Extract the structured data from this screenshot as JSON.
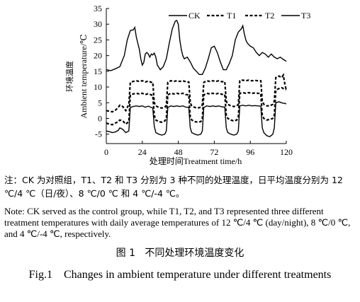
{
  "chart_data": {
    "type": "line",
    "xlabel": "处理时间Treatment time/h",
    "ylabel_zh": "环境温度",
    "ylabel_en": "Ambient temperature/℃",
    "xlim": [
      0,
      120
    ],
    "ylim": [
      -8,
      35
    ],
    "x_ticks": [
      0,
      24,
      48,
      72,
      96,
      120
    ],
    "y_ticks": [
      -5,
      0,
      5,
      10,
      15,
      20,
      25,
      30,
      35
    ],
    "legend_position": "top-right",
    "grid": false,
    "series": [
      {
        "name": "CK",
        "style": "solid",
        "points": [
          [
            0,
            15.5
          ],
          [
            3,
            15.2
          ],
          [
            6,
            15.8
          ],
          [
            9,
            16.5
          ],
          [
            12,
            20
          ],
          [
            14,
            25
          ],
          [
            16,
            28
          ],
          [
            18,
            28.2
          ],
          [
            19,
            29
          ],
          [
            20,
            26
          ],
          [
            21,
            24
          ],
          [
            22,
            22
          ],
          [
            23,
            19
          ],
          [
            24,
            17
          ],
          [
            25,
            17.8
          ],
          [
            26,
            20.5
          ],
          [
            27,
            21
          ],
          [
            28,
            20.5
          ],
          [
            29,
            19.5
          ],
          [
            30,
            20.5
          ],
          [
            31,
            20.2
          ],
          [
            32,
            20.8
          ],
          [
            33,
            19.5
          ],
          [
            34,
            17
          ],
          [
            36,
            15.5
          ],
          [
            38,
            16.5
          ],
          [
            40,
            19
          ],
          [
            42,
            24
          ],
          [
            44,
            28.5
          ],
          [
            46,
            31
          ],
          [
            47,
            31.2
          ],
          [
            48,
            30
          ],
          [
            49,
            25
          ],
          [
            50,
            22
          ],
          [
            51,
            20
          ],
          [
            52,
            19
          ],
          [
            54,
            19.5
          ],
          [
            56,
            18
          ],
          [
            58,
            16
          ],
          [
            60,
            15
          ],
          [
            62,
            14
          ],
          [
            64,
            14
          ],
          [
            66,
            16
          ],
          [
            68,
            19
          ],
          [
            70,
            22.5
          ],
          [
            72,
            23
          ],
          [
            74,
            21
          ],
          [
            76,
            18
          ],
          [
            78,
            15.5
          ],
          [
            80,
            15.5
          ],
          [
            82,
            17.5
          ],
          [
            84,
            20
          ],
          [
            86,
            25
          ],
          [
            88,
            27.5
          ],
          [
            90,
            28.5
          ],
          [
            91,
            29.5
          ],
          [
            92,
            27
          ],
          [
            93,
            25
          ],
          [
            94,
            24
          ],
          [
            96,
            23
          ],
          [
            98,
            22.5
          ],
          [
            100,
            21
          ],
          [
            102,
            20
          ],
          [
            104,
            21
          ],
          [
            106,
            20.5
          ],
          [
            108,
            19.5
          ],
          [
            110,
            20.5
          ],
          [
            112,
            19.5
          ],
          [
            114,
            19
          ],
          [
            116,
            19.5
          ],
          [
            118,
            18.8
          ],
          [
            120,
            18.2
          ]
        ]
      },
      {
        "name": "T1",
        "style": "dashed",
        "points": [
          [
            0,
            2.5
          ],
          [
            2,
            2.3
          ],
          [
            4,
            2.1
          ],
          [
            6,
            2.6
          ],
          [
            8,
            3.5
          ],
          [
            9,
            4.2
          ],
          [
            11,
            3.8
          ],
          [
            13,
            2.5
          ],
          [
            15,
            4.5
          ],
          [
            16,
            11.5
          ],
          [
            18,
            11.8
          ],
          [
            20,
            12
          ],
          [
            22,
            11.8
          ],
          [
            24,
            12
          ],
          [
            26,
            11.6
          ],
          [
            28,
            11.9
          ],
          [
            30,
            11.5
          ],
          [
            31,
            11.5
          ],
          [
            32,
            5
          ],
          [
            33,
            4
          ],
          [
            35,
            3.5
          ],
          [
            37,
            3.3
          ],
          [
            39,
            3.6
          ],
          [
            40,
            4.2
          ],
          [
            41,
            11.5
          ],
          [
            43,
            12
          ],
          [
            45,
            11.8
          ],
          [
            47,
            12
          ],
          [
            49,
            11.8
          ],
          [
            51,
            12
          ],
          [
            53,
            11.7
          ],
          [
            55,
            11.6
          ],
          [
            56,
            5
          ],
          [
            57,
            4
          ],
          [
            59,
            3.5
          ],
          [
            61,
            3.3
          ],
          [
            63,
            3.6
          ],
          [
            64,
            4.3
          ],
          [
            65,
            11.5
          ],
          [
            67,
            12
          ],
          [
            69,
            11.8
          ],
          [
            71,
            12
          ],
          [
            73,
            11.8
          ],
          [
            75,
            12
          ],
          [
            77,
            11.7
          ],
          [
            79,
            11.7
          ],
          [
            80,
            5.5
          ],
          [
            81,
            4.5
          ],
          [
            83,
            4
          ],
          [
            85,
            3.8
          ],
          [
            87,
            4
          ],
          [
            88,
            4.5
          ],
          [
            89,
            12
          ],
          [
            91,
            12.2
          ],
          [
            93,
            12
          ],
          [
            95,
            12.2
          ],
          [
            97,
            12
          ],
          [
            99,
            12.1
          ],
          [
            101,
            12
          ],
          [
            103,
            12
          ],
          [
            104,
            5.5
          ],
          [
            105,
            4.5
          ],
          [
            107,
            4
          ],
          [
            109,
            4
          ],
          [
            111,
            4.5
          ],
          [
            112,
            5.5
          ],
          [
            113,
            13
          ],
          [
            115,
            13.5
          ],
          [
            117,
            13
          ],
          [
            118,
            13.8
          ],
          [
            119,
            11
          ],
          [
            120,
            9
          ]
        ]
      },
      {
        "name": "T2",
        "style": "dashed",
        "points": [
          [
            0,
            -1.5
          ],
          [
            2,
            -1.8
          ],
          [
            4,
            -2
          ],
          [
            6,
            -1.5
          ],
          [
            8,
            -1
          ],
          [
            9,
            -0.5
          ],
          [
            11,
            -0.8
          ],
          [
            13,
            -1.8
          ],
          [
            15,
            -1
          ],
          [
            16,
            7.5
          ],
          [
            18,
            7.8
          ],
          [
            20,
            8
          ],
          [
            22,
            7.8
          ],
          [
            24,
            8
          ],
          [
            26,
            7.6
          ],
          [
            28,
            7.9
          ],
          [
            30,
            7.5
          ],
          [
            31,
            7.3
          ],
          [
            32,
            1
          ],
          [
            33,
            -0.5
          ],
          [
            35,
            -1
          ],
          [
            37,
            -1.2
          ],
          [
            39,
            -0.8
          ],
          [
            40,
            0
          ],
          [
            41,
            7.5
          ],
          [
            43,
            8
          ],
          [
            45,
            7.8
          ],
          [
            47,
            8
          ],
          [
            49,
            7.8
          ],
          [
            51,
            8
          ],
          [
            53,
            7.6
          ],
          [
            55,
            7.5
          ],
          [
            56,
            0.5
          ],
          [
            57,
            -0.5
          ],
          [
            59,
            -1
          ],
          [
            61,
            -1.2
          ],
          [
            63,
            -1
          ],
          [
            64,
            0
          ],
          [
            65,
            7.5
          ],
          [
            67,
            8
          ],
          [
            69,
            7.8
          ],
          [
            71,
            8
          ],
          [
            73,
            7.8
          ],
          [
            75,
            8
          ],
          [
            77,
            7.7
          ],
          [
            79,
            7.6
          ],
          [
            80,
            1
          ],
          [
            81,
            0
          ],
          [
            83,
            -0.5
          ],
          [
            85,
            -0.8
          ],
          [
            87,
            -0.5
          ],
          [
            88,
            0.5
          ],
          [
            89,
            8
          ],
          [
            91,
            8.2
          ],
          [
            93,
            8
          ],
          [
            95,
            8.2
          ],
          [
            97,
            8
          ],
          [
            99,
            8.1
          ],
          [
            101,
            8
          ],
          [
            103,
            7.9
          ],
          [
            104,
            1
          ],
          [
            105,
            0
          ],
          [
            107,
            -0.5
          ],
          [
            109,
            -0.3
          ],
          [
            111,
            0
          ],
          [
            112,
            1
          ],
          [
            113,
            9
          ],
          [
            115,
            9.5
          ],
          [
            117,
            9.8
          ],
          [
            118,
            9.5
          ],
          [
            119,
            9.3
          ],
          [
            120,
            9.2
          ]
        ]
      },
      {
        "name": "T3",
        "style": "solid",
        "points": [
          [
            0,
            -4
          ],
          [
            2,
            -4.2
          ],
          [
            4,
            -4.5
          ],
          [
            6,
            -4.3
          ],
          [
            8,
            -3.8
          ],
          [
            9,
            -3
          ],
          [
            11,
            -3.5
          ],
          [
            13,
            -4.5
          ],
          [
            15,
            -4
          ],
          [
            16,
            3.5
          ],
          [
            18,
            3.8
          ],
          [
            20,
            4
          ],
          [
            22,
            3.8
          ],
          [
            24,
            4
          ],
          [
            26,
            3.6
          ],
          [
            28,
            3.9
          ],
          [
            30,
            3.5
          ],
          [
            31,
            3.3
          ],
          [
            32,
            -2.5
          ],
          [
            33,
            -4.5
          ],
          [
            35,
            -5
          ],
          [
            37,
            -5.3
          ],
          [
            39,
            -5
          ],
          [
            40,
            -4
          ],
          [
            41,
            3.5
          ],
          [
            43,
            4
          ],
          [
            45,
            3.8
          ],
          [
            47,
            4
          ],
          [
            49,
            3.8
          ],
          [
            51,
            4
          ],
          [
            53,
            3.6
          ],
          [
            55,
            3.5
          ],
          [
            56,
            -3
          ],
          [
            57,
            -4.5
          ],
          [
            59,
            -5
          ],
          [
            61,
            -5.3
          ],
          [
            63,
            -5
          ],
          [
            64,
            -4
          ],
          [
            65,
            3.5
          ],
          [
            67,
            4
          ],
          [
            69,
            3.8
          ],
          [
            71,
            4
          ],
          [
            73,
            3.8
          ],
          [
            75,
            4
          ],
          [
            77,
            3.7
          ],
          [
            79,
            3.6
          ],
          [
            80,
            -3
          ],
          [
            81,
            -4.5
          ],
          [
            83,
            -5
          ],
          [
            85,
            -5.3
          ],
          [
            87,
            -5
          ],
          [
            88,
            -4
          ],
          [
            89,
            4
          ],
          [
            91,
            4.2
          ],
          [
            93,
            4
          ],
          [
            95,
            4.2
          ],
          [
            97,
            4
          ],
          [
            99,
            4.1
          ],
          [
            101,
            4
          ],
          [
            103,
            3.9
          ],
          [
            104,
            -3
          ],
          [
            105,
            -4.5
          ],
          [
            107,
            -5.5
          ],
          [
            109,
            -5.8
          ],
          [
            111,
            -5
          ],
          [
            112,
            -3
          ],
          [
            113,
            5
          ],
          [
            115,
            5.3
          ],
          [
            117,
            5
          ],
          [
            118,
            4.8
          ],
          [
            119,
            4.8
          ],
          [
            120,
            4.6
          ]
        ]
      }
    ]
  },
  "note_zh": "注：CK 为对照组，T1、T2 和 T3 分别为 3 种不同的处理温度，日平均温度分别为 12 ℃/4 ℃（日/夜）、8 ℃/0 ℃ 和 4 ℃/-4 ℃。",
  "note_en": "Note: CK served as the control group, while T1, T2, and T3 represented three different treatment temperatures with daily average temperatures of 12 ℃/4 ℃ (day/night), 8 ℃/0 ℃, and 4 ℃/-4 ℃, respectively.",
  "figure": {
    "label_zh": "图 1",
    "title_zh": "不同处理环境温度变化",
    "label_en": "Fig.1",
    "title_en": "Changes in ambient temperature under different treatments"
  }
}
